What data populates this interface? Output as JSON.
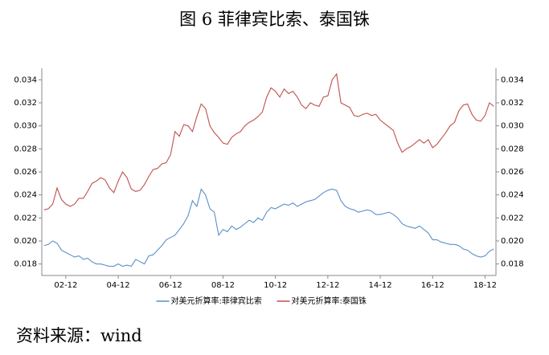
{
  "chart_data": {
    "type": "line",
    "title": "图 6  菲律宾比索、泰国铢",
    "source": "资料来源：wind",
    "categories": [
      null,
      null,
      null,
      null,
      null,
      "02-12",
      null,
      null,
      null,
      null,
      null,
      null,
      null,
      null,
      null,
      null,
      null,
      "04-12",
      null,
      null,
      null,
      null,
      null,
      null,
      null,
      null,
      null,
      null,
      null,
      "06-12",
      null,
      null,
      null,
      null,
      null,
      null,
      null,
      null,
      null,
      null,
      null,
      "08-12",
      null,
      null,
      null,
      null,
      null,
      null,
      null,
      null,
      null,
      null,
      null,
      "10-12",
      null,
      null,
      null,
      null,
      null,
      null,
      null,
      null,
      null,
      null,
      null,
      "12-12",
      null,
      null,
      null,
      null,
      null,
      null,
      null,
      null,
      null,
      null,
      null,
      "14-12",
      null,
      null,
      null,
      null,
      null,
      null,
      null,
      null,
      null,
      null,
      null,
      "16-12",
      null,
      null,
      null,
      null,
      null,
      null,
      null,
      null,
      null,
      null,
      null,
      "18-12",
      null,
      null
    ],
    "series": [
      {
        "name": "对美元折算率:菲律宾比索",
        "color": "#5b8ec9",
        "values": [
          0.0196,
          0.0197,
          0.02,
          0.0198,
          0.0192,
          0.019,
          0.0188,
          0.0186,
          0.0187,
          0.0184,
          0.0185,
          0.0182,
          0.018,
          0.018,
          0.0179,
          0.0178,
          0.0178,
          0.018,
          0.0178,
          0.0179,
          0.0178,
          0.0184,
          0.0182,
          0.018,
          0.0187,
          0.0188,
          0.0192,
          0.0196,
          0.0201,
          0.0203,
          0.0205,
          0.021,
          0.0215,
          0.0222,
          0.0235,
          0.023,
          0.0245,
          0.024,
          0.0228,
          0.0225,
          0.0205,
          0.021,
          0.0208,
          0.0213,
          0.021,
          0.0212,
          0.0215,
          0.0218,
          0.0216,
          0.022,
          0.0218,
          0.0225,
          0.0229,
          0.0228,
          0.023,
          0.0232,
          0.0231,
          0.0233,
          0.023,
          0.0232,
          0.0234,
          0.0235,
          0.0236,
          0.0239,
          0.0242,
          0.0244,
          0.0245,
          0.0244,
          0.0235,
          0.023,
          0.0228,
          0.0227,
          0.0225,
          0.0226,
          0.0227,
          0.0226,
          0.0223,
          0.0223,
          0.0224,
          0.0225,
          0.0223,
          0.022,
          0.0215,
          0.0213,
          0.0212,
          0.0211,
          0.0213,
          0.021,
          0.0207,
          0.0201,
          0.0201,
          0.0199,
          0.0198,
          0.0197,
          0.0197,
          0.0196,
          0.0193,
          0.0192,
          0.0189,
          0.0187,
          0.0186,
          0.0187,
          0.0191,
          0.0193
        ]
      },
      {
        "name": "对美元折算率:泰国铢",
        "color": "#c0504d",
        "values": [
          0.0227,
          0.0228,
          0.0232,
          0.0246,
          0.0236,
          0.0232,
          0.023,
          0.0232,
          0.0237,
          0.0237,
          0.0243,
          0.025,
          0.0252,
          0.0255,
          0.0253,
          0.0246,
          0.0242,
          0.0252,
          0.026,
          0.0255,
          0.0245,
          0.0243,
          0.0244,
          0.0249,
          0.0256,
          0.0262,
          0.0263,
          0.0267,
          0.0268,
          0.0275,
          0.0295,
          0.0291,
          0.0301,
          0.03,
          0.0295,
          0.0308,
          0.0319,
          0.0315,
          0.03,
          0.0294,
          0.029,
          0.0285,
          0.0284,
          0.029,
          0.0293,
          0.0295,
          0.03,
          0.0303,
          0.0305,
          0.0308,
          0.0312,
          0.0325,
          0.0333,
          0.033,
          0.0325,
          0.0332,
          0.0328,
          0.033,
          0.0325,
          0.0318,
          0.0315,
          0.032,
          0.0318,
          0.0317,
          0.0325,
          0.0326,
          0.034,
          0.0345,
          0.032,
          0.0318,
          0.0316,
          0.0309,
          0.0308,
          0.031,
          0.0311,
          0.0309,
          0.031,
          0.0305,
          0.0302,
          0.0299,
          0.0296,
          0.0285,
          0.0277,
          0.028,
          0.0282,
          0.0285,
          0.0288,
          0.0285,
          0.0288,
          0.0281,
          0.0284,
          0.0289,
          0.0294,
          0.03,
          0.0303,
          0.0313,
          0.0318,
          0.0319,
          0.031,
          0.0305,
          0.0304,
          0.0309,
          0.032,
          0.0317
        ]
      }
    ],
    "ylim": [
      0.017,
      0.035
    ],
    "yticks": [
      0.018,
      {
        "value": 0.02,
        "label": "0.020"
      },
      0.022,
      0.024,
      0.026,
      0.028,
      {
        "value": 0.03,
        "label": "0.030"
      },
      0.032,
      0.034
    ],
    "y2lim": [
      0.017,
      0.035
    ],
    "y2ticks": [
      0.018,
      {
        "value": 0.02,
        "label": "0.020"
      },
      0.022,
      0.024,
      0.026,
      0.028,
      {
        "value": 0.03,
        "label": "0.030"
      },
      0.032,
      0.034
    ],
    "grid": false,
    "legend": "bottom"
  }
}
